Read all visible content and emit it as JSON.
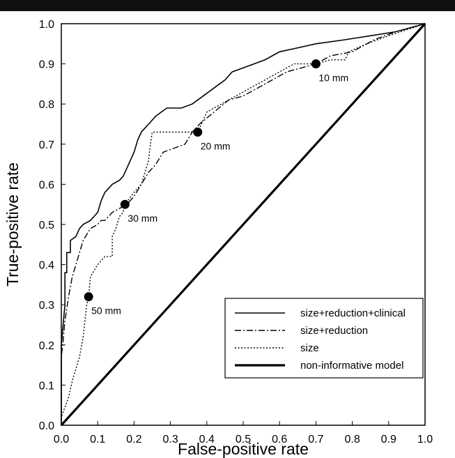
{
  "chart_data": {
    "type": "line",
    "title": "",
    "xlabel": "False-positive rate",
    "ylabel": "True-positive rate",
    "xlim": [
      0,
      1
    ],
    "ylim": [
      0,
      1
    ],
    "xticks": [
      "0.0",
      "0.1",
      "0.2",
      "0.3",
      "0.4",
      "0.5",
      "0.6",
      "0.7",
      "0.8",
      "0.9",
      "1.0"
    ],
    "yticks": [
      "0.0",
      "0.1",
      "0.2",
      "0.3",
      "0.4",
      "0.5",
      "0.6",
      "0.7",
      "0.8",
      "0.9",
      "1.0"
    ],
    "grid": false,
    "legend_position": "bottom-right",
    "series": [
      {
        "name": "size+reduction+clinical",
        "style": "solid",
        "color": "#000000",
        "points": [
          [
            0,
            0
          ],
          [
            0,
            0.2
          ],
          [
            0.005,
            0.25
          ],
          [
            0.01,
            0.3
          ],
          [
            0.01,
            0.38
          ],
          [
            0.015,
            0.38
          ],
          [
            0.015,
            0.43
          ],
          [
            0.025,
            0.43
          ],
          [
            0.025,
            0.46
          ],
          [
            0.04,
            0.47
          ],
          [
            0.05,
            0.49
          ],
          [
            0.06,
            0.5
          ],
          [
            0.08,
            0.51
          ],
          [
            0.09,
            0.52
          ],
          [
            0.1,
            0.53
          ],
          [
            0.11,
            0.56
          ],
          [
            0.12,
            0.58
          ],
          [
            0.13,
            0.59
          ],
          [
            0.14,
            0.6
          ],
          [
            0.16,
            0.61
          ],
          [
            0.17,
            0.62
          ],
          [
            0.18,
            0.64
          ],
          [
            0.19,
            0.66
          ],
          [
            0.2,
            0.68
          ],
          [
            0.21,
            0.71
          ],
          [
            0.22,
            0.73
          ],
          [
            0.24,
            0.75
          ],
          [
            0.26,
            0.77
          ],
          [
            0.29,
            0.79
          ],
          [
            0.33,
            0.79
          ],
          [
            0.36,
            0.8
          ],
          [
            0.39,
            0.82
          ],
          [
            0.42,
            0.84
          ],
          [
            0.45,
            0.86
          ],
          [
            0.47,
            0.88
          ],
          [
            0.5,
            0.89
          ],
          [
            0.53,
            0.9
          ],
          [
            0.56,
            0.91
          ],
          [
            0.6,
            0.93
          ],
          [
            0.65,
            0.94
          ],
          [
            0.7,
            0.95
          ],
          [
            0.78,
            0.96
          ],
          [
            0.85,
            0.97
          ],
          [
            0.92,
            0.98
          ],
          [
            1,
            1
          ]
        ]
      },
      {
        "name": "size+reduction",
        "style": "dashdot",
        "color": "#000000",
        "points": [
          [
            0,
            0
          ],
          [
            0,
            0.17
          ],
          [
            0.005,
            0.21
          ],
          [
            0.01,
            0.26
          ],
          [
            0.02,
            0.32
          ],
          [
            0.03,
            0.37
          ],
          [
            0.04,
            0.4
          ],
          [
            0.05,
            0.43
          ],
          [
            0.06,
            0.46
          ],
          [
            0.08,
            0.49
          ],
          [
            0.1,
            0.5
          ],
          [
            0.11,
            0.51
          ],
          [
            0.12,
            0.51
          ],
          [
            0.14,
            0.53
          ],
          [
            0.16,
            0.54
          ],
          [
            0.18,
            0.55
          ],
          [
            0.2,
            0.57
          ],
          [
            0.22,
            0.6
          ],
          [
            0.24,
            0.63
          ],
          [
            0.26,
            0.65
          ],
          [
            0.28,
            0.68
          ],
          [
            0.31,
            0.69
          ],
          [
            0.34,
            0.7
          ],
          [
            0.36,
            0.73
          ],
          [
            0.38,
            0.75
          ],
          [
            0.42,
            0.78
          ],
          [
            0.46,
            0.81
          ],
          [
            0.5,
            0.82
          ],
          [
            0.54,
            0.84
          ],
          [
            0.58,
            0.86
          ],
          [
            0.62,
            0.88
          ],
          [
            0.66,
            0.89
          ],
          [
            0.7,
            0.9
          ],
          [
            0.74,
            0.92
          ],
          [
            0.8,
            0.93
          ],
          [
            0.86,
            0.96
          ],
          [
            0.92,
            0.98
          ],
          [
            1,
            1
          ]
        ]
      },
      {
        "name": "size",
        "style": "dotted",
        "color": "#000000",
        "points": [
          [
            0,
            0
          ],
          [
            0,
            0.02
          ],
          [
            0.02,
            0.07
          ],
          [
            0.03,
            0.11
          ],
          [
            0.05,
            0.17
          ],
          [
            0.06,
            0.22
          ],
          [
            0.07,
            0.3
          ],
          [
            0.075,
            0.32
          ],
          [
            0.08,
            0.37
          ],
          [
            0.1,
            0.4
          ],
          [
            0.12,
            0.42
          ],
          [
            0.14,
            0.42
          ],
          [
            0.14,
            0.47
          ],
          [
            0.15,
            0.49
          ],
          [
            0.16,
            0.52
          ],
          [
            0.17,
            0.53
          ],
          [
            0.175,
            0.55
          ],
          [
            0.2,
            0.58
          ],
          [
            0.22,
            0.6
          ],
          [
            0.23,
            0.63
          ],
          [
            0.24,
            0.66
          ],
          [
            0.245,
            0.7
          ],
          [
            0.25,
            0.73
          ],
          [
            0.28,
            0.73
          ],
          [
            0.33,
            0.73
          ],
          [
            0.375,
            0.73
          ],
          [
            0.4,
            0.78
          ],
          [
            0.44,
            0.8
          ],
          [
            0.48,
            0.82
          ],
          [
            0.52,
            0.84
          ],
          [
            0.56,
            0.86
          ],
          [
            0.6,
            0.88
          ],
          [
            0.64,
            0.9
          ],
          [
            0.7,
            0.9
          ],
          [
            0.74,
            0.91
          ],
          [
            0.78,
            0.91
          ],
          [
            0.79,
            0.93
          ],
          [
            0.84,
            0.95
          ],
          [
            0.9,
            0.97
          ],
          [
            1,
            1
          ]
        ]
      },
      {
        "name": "non-informative model",
        "style": "thick",
        "color": "#000000",
        "points": [
          [
            0,
            0
          ],
          [
            1,
            1
          ]
        ]
      }
    ],
    "annotations": [
      {
        "label": "10 mm",
        "x": 0.7,
        "y": 0.9
      },
      {
        "label": "20 mm",
        "x": 0.375,
        "y": 0.73
      },
      {
        "label": "30 mm",
        "x": 0.175,
        "y": 0.55
      },
      {
        "label": "50 mm",
        "x": 0.075,
        "y": 0.32
      }
    ]
  }
}
